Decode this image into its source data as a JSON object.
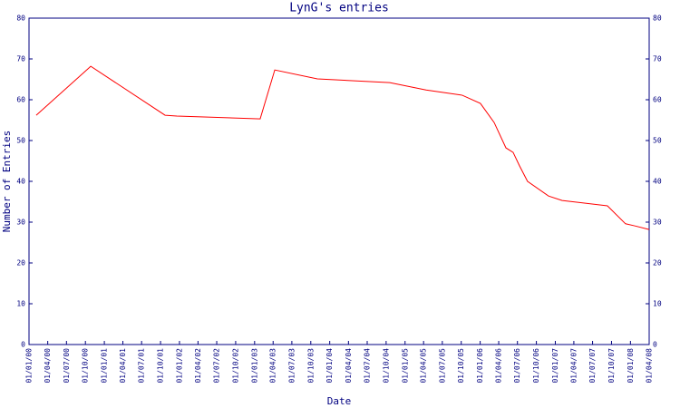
{
  "chart_data": {
    "type": "line",
    "title": "LynG's entries",
    "x_label": "Date",
    "y_label": "Number of Entries",
    "x": [
      "2000-02-05",
      "2000-10-27",
      "2001-10-23",
      "2001-12-19",
      "2003-01-28",
      "2003-04-09",
      "2003-11-02",
      "2004-10-19",
      "2005-04-13",
      "2005-10-06",
      "2006-01-02",
      "2006-03-10",
      "2006-05-06",
      "2006-06-10",
      "2006-07-11",
      "2006-08-19",
      "2006-11-29",
      "2007-02-03",
      "2007-09-11",
      "2007-12-08",
      "2008-01-21",
      "2008-04-01"
    ],
    "series": [
      {
        "name": "LynG",
        "color": "#ff0000",
        "values": [
          56.2,
          68.2,
          56.2,
          56,
          55.3,
          67.3,
          65.1,
          64.2,
          62.4,
          61.1,
          59.1,
          54.4,
          48.2,
          47.1,
          43.8,
          40,
          36.4,
          35.3,
          34,
          29.6,
          29.1,
          28.2
        ]
      }
    ],
    "xlim": [
      "2000-01-01",
      "2008-04-01"
    ],
    "xticks": [
      {
        "value": "2000-01-01",
        "label": "01/01/00"
      },
      {
        "value": "2000-04-01",
        "label": "01/04/00"
      },
      {
        "value": "2000-07-01",
        "label": "01/07/00"
      },
      {
        "value": "2000-10-01",
        "label": "01/10/00"
      },
      {
        "value": "2001-01-01",
        "label": "01/01/01"
      },
      {
        "value": "2001-04-01",
        "label": "01/04/01"
      },
      {
        "value": "2001-07-01",
        "label": "01/07/01"
      },
      {
        "value": "2001-10-01",
        "label": "01/10/01"
      },
      {
        "value": "2002-01-01",
        "label": "01/01/02"
      },
      {
        "value": "2002-04-01",
        "label": "01/04/02"
      },
      {
        "value": "2002-07-01",
        "label": "01/07/02"
      },
      {
        "value": "2002-10-01",
        "label": "01/10/02"
      },
      {
        "value": "2003-01-01",
        "label": "01/01/03"
      },
      {
        "value": "2003-04-01",
        "label": "01/04/03"
      },
      {
        "value": "2003-07-01",
        "label": "01/07/03"
      },
      {
        "value": "2003-10-01",
        "label": "01/10/03"
      },
      {
        "value": "2004-01-01",
        "label": "01/01/04"
      },
      {
        "value": "2004-04-01",
        "label": "01/04/04"
      },
      {
        "value": "2004-07-01",
        "label": "01/07/04"
      },
      {
        "value": "2004-10-01",
        "label": "01/10/04"
      },
      {
        "value": "2005-01-01",
        "label": "01/01/05"
      },
      {
        "value": "2005-04-01",
        "label": "01/04/05"
      },
      {
        "value": "2005-07-01",
        "label": "01/07/05"
      },
      {
        "value": "2005-10-01",
        "label": "01/10/05"
      },
      {
        "value": "2006-01-01",
        "label": "01/01/06"
      },
      {
        "value": "2006-04-01",
        "label": "01/04/06"
      },
      {
        "value": "2006-07-01",
        "label": "01/07/06"
      },
      {
        "value": "2006-10-01",
        "label": "01/10/06"
      },
      {
        "value": "2007-01-01",
        "label": "01/01/07"
      },
      {
        "value": "2007-04-01",
        "label": "01/04/07"
      },
      {
        "value": "2007-07-01",
        "label": "01/07/07"
      },
      {
        "value": "2007-10-01",
        "label": "01/10/07"
      },
      {
        "value": "2008-01-01",
        "label": "01/01/08"
      },
      {
        "value": "2008-04-01",
        "label": "01/04/08"
      }
    ],
    "ylim": [
      0,
      80
    ],
    "yticks": [
      0,
      10,
      20,
      30,
      40,
      50,
      60,
      70,
      80
    ],
    "grid": false
  }
}
